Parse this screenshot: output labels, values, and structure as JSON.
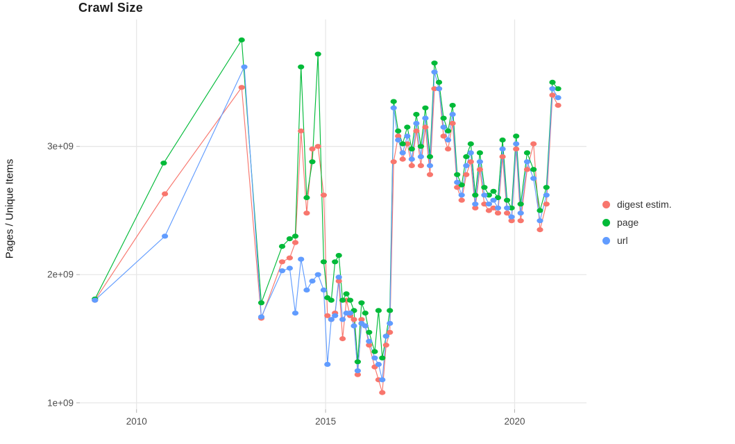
{
  "chart_data": {
    "type": "line",
    "title": "Crawl Size",
    "xlabel": "",
    "ylabel": "Pages / Unique Items",
    "x_unit": "year",
    "y_unit": "value × 1e9 (pages / unique items)",
    "xlim": [
      2008.5,
      2021.9
    ],
    "ylim": [
      0.95,
      3.99
    ],
    "grid": true,
    "grid_color": "#e7e7e7",
    "tick_color": "#4d4d4d",
    "legend_position": "right",
    "x_ticks": [
      {
        "value": 2010,
        "label": "2010"
      },
      {
        "value": 2015,
        "label": "2015"
      },
      {
        "value": 2020,
        "label": "2020"
      }
    ],
    "y_ticks": [
      {
        "value": 1,
        "label": "1e+09"
      },
      {
        "value": 2,
        "label": "2e+09"
      },
      {
        "value": 3,
        "label": "3e+09"
      }
    ],
    "series": [
      {
        "name": "digest estim.",
        "key": "digest-estim",
        "color": "#F8766D",
        "points": [
          [
            2008.9,
            1.8
          ],
          [
            2010.75,
            2.63
          ],
          [
            2012.78,
            3.46
          ],
          [
            2013.3,
            1.66
          ],
          [
            2013.85,
            2.1
          ],
          [
            2014.05,
            2.13
          ],
          [
            2014.2,
            2.25
          ],
          [
            2014.35,
            3.12
          ],
          [
            2014.5,
            2.48
          ],
          [
            2014.65,
            2.98
          ],
          [
            2014.8,
            3.0
          ],
          [
            2014.95,
            2.62
          ],
          [
            2015.05,
            1.68
          ],
          [
            2015.15,
            1.65
          ],
          [
            2015.25,
            1.7
          ],
          [
            2015.35,
            1.95
          ],
          [
            2015.45,
            1.5
          ],
          [
            2015.55,
            1.8
          ],
          [
            2015.65,
            1.68
          ],
          [
            2015.75,
            1.65
          ],
          [
            2015.85,
            1.22
          ],
          [
            2015.95,
            1.65
          ],
          [
            2016.05,
            1.6
          ],
          [
            2016.15,
            1.45
          ],
          [
            2016.3,
            1.28
          ],
          [
            2016.4,
            1.18
          ],
          [
            2016.5,
            1.08
          ],
          [
            2016.6,
            1.45
          ],
          [
            2016.7,
            1.55
          ],
          [
            2016.8,
            2.88
          ],
          [
            2016.92,
            3.08
          ],
          [
            2017.04,
            2.9
          ],
          [
            2017.16,
            3.02
          ],
          [
            2017.28,
            2.85
          ],
          [
            2017.4,
            3.12
          ],
          [
            2017.52,
            2.85
          ],
          [
            2017.64,
            3.15
          ],
          [
            2017.76,
            2.78
          ],
          [
            2017.88,
            3.45
          ],
          [
            2018.0,
            3.45
          ],
          [
            2018.12,
            3.08
          ],
          [
            2018.24,
            2.98
          ],
          [
            2018.36,
            3.18
          ],
          [
            2018.48,
            2.68
          ],
          [
            2018.6,
            2.58
          ],
          [
            2018.72,
            2.78
          ],
          [
            2018.84,
            2.88
          ],
          [
            2018.96,
            2.52
          ],
          [
            2019.08,
            2.82
          ],
          [
            2019.2,
            2.55
          ],
          [
            2019.32,
            2.5
          ],
          [
            2019.44,
            2.52
          ],
          [
            2019.56,
            2.48
          ],
          [
            2019.68,
            2.92
          ],
          [
            2019.8,
            2.48
          ],
          [
            2019.92,
            2.42
          ],
          [
            2020.04,
            2.98
          ],
          [
            2020.16,
            2.42
          ],
          [
            2020.33,
            2.82
          ],
          [
            2020.5,
            3.02
          ],
          [
            2020.67,
            2.35
          ],
          [
            2020.84,
            2.55
          ],
          [
            2021.0,
            3.4
          ],
          [
            2021.15,
            3.32
          ]
        ]
      },
      {
        "name": "page",
        "key": "page",
        "color": "#00BA38",
        "points": [
          [
            2008.9,
            1.81
          ],
          [
            2010.72,
            2.87
          ],
          [
            2012.78,
            3.83
          ],
          [
            2013.3,
            1.78
          ],
          [
            2013.85,
            2.22
          ],
          [
            2014.05,
            2.28
          ],
          [
            2014.2,
            2.3
          ],
          [
            2014.35,
            3.62
          ],
          [
            2014.5,
            2.6
          ],
          [
            2014.65,
            2.88
          ],
          [
            2014.8,
            3.72
          ],
          [
            2014.95,
            2.1
          ],
          [
            2015.05,
            1.82
          ],
          [
            2015.15,
            1.8
          ],
          [
            2015.25,
            2.1
          ],
          [
            2015.35,
            2.15
          ],
          [
            2015.45,
            1.8
          ],
          [
            2015.55,
            1.85
          ],
          [
            2015.65,
            1.8
          ],
          [
            2015.75,
            1.72
          ],
          [
            2015.85,
            1.32
          ],
          [
            2015.95,
            1.78
          ],
          [
            2016.05,
            1.7
          ],
          [
            2016.15,
            1.55
          ],
          [
            2016.3,
            1.4
          ],
          [
            2016.4,
            1.72
          ],
          [
            2016.5,
            1.35
          ],
          [
            2016.6,
            1.52
          ],
          [
            2016.7,
            1.72
          ],
          [
            2016.8,
            3.35
          ],
          [
            2016.92,
            3.12
          ],
          [
            2017.04,
            3.02
          ],
          [
            2017.16,
            3.15
          ],
          [
            2017.28,
            2.98
          ],
          [
            2017.4,
            3.25
          ],
          [
            2017.52,
            3.0
          ],
          [
            2017.64,
            3.3
          ],
          [
            2017.76,
            2.92
          ],
          [
            2017.88,
            3.65
          ],
          [
            2018.0,
            3.5
          ],
          [
            2018.12,
            3.22
          ],
          [
            2018.24,
            3.12
          ],
          [
            2018.36,
            3.32
          ],
          [
            2018.48,
            2.78
          ],
          [
            2018.6,
            2.7
          ],
          [
            2018.72,
            2.92
          ],
          [
            2018.84,
            3.02
          ],
          [
            2018.96,
            2.62
          ],
          [
            2019.08,
            2.95
          ],
          [
            2019.2,
            2.68
          ],
          [
            2019.32,
            2.62
          ],
          [
            2019.44,
            2.65
          ],
          [
            2019.56,
            2.6
          ],
          [
            2019.68,
            3.05
          ],
          [
            2019.8,
            2.58
          ],
          [
            2019.92,
            2.52
          ],
          [
            2020.04,
            3.08
          ],
          [
            2020.16,
            2.55
          ],
          [
            2020.33,
            2.95
          ],
          [
            2020.5,
            2.82
          ],
          [
            2020.67,
            2.5
          ],
          [
            2020.84,
            2.68
          ],
          [
            2021.0,
            3.5
          ],
          [
            2021.15,
            3.45
          ]
        ]
      },
      {
        "name": "url",
        "key": "url",
        "color": "#619CFF",
        "points": [
          [
            2008.9,
            1.8
          ],
          [
            2010.75,
            2.3
          ],
          [
            2012.85,
            3.62
          ],
          [
            2013.3,
            1.67
          ],
          [
            2013.85,
            2.03
          ],
          [
            2014.05,
            2.05
          ],
          [
            2014.2,
            1.7
          ],
          [
            2014.35,
            2.12
          ],
          [
            2014.5,
            1.88
          ],
          [
            2014.65,
            1.95
          ],
          [
            2014.8,
            2.0
          ],
          [
            2014.95,
            1.88
          ],
          [
            2015.05,
            1.3
          ],
          [
            2015.15,
            1.65
          ],
          [
            2015.25,
            1.68
          ],
          [
            2015.35,
            1.98
          ],
          [
            2015.45,
            1.65
          ],
          [
            2015.55,
            1.7
          ],
          [
            2015.65,
            1.7
          ],
          [
            2015.75,
            1.6
          ],
          [
            2015.85,
            1.25
          ],
          [
            2015.95,
            1.62
          ],
          [
            2016.05,
            1.6
          ],
          [
            2016.15,
            1.48
          ],
          [
            2016.3,
            1.35
          ],
          [
            2016.4,
            1.3
          ],
          [
            2016.5,
            1.18
          ],
          [
            2016.6,
            1.52
          ],
          [
            2016.7,
            1.62
          ],
          [
            2016.8,
            3.3
          ],
          [
            2016.92,
            3.05
          ],
          [
            2017.04,
            2.95
          ],
          [
            2017.16,
            3.08
          ],
          [
            2017.28,
            2.9
          ],
          [
            2017.4,
            3.18
          ],
          [
            2017.52,
            2.92
          ],
          [
            2017.64,
            3.22
          ],
          [
            2017.76,
            2.85
          ],
          [
            2017.88,
            3.58
          ],
          [
            2018.0,
            3.45
          ],
          [
            2018.12,
            3.15
          ],
          [
            2018.24,
            3.05
          ],
          [
            2018.36,
            3.25
          ],
          [
            2018.48,
            2.72
          ],
          [
            2018.6,
            2.62
          ],
          [
            2018.72,
            2.85
          ],
          [
            2018.84,
            2.95
          ],
          [
            2018.96,
            2.55
          ],
          [
            2019.08,
            2.88
          ],
          [
            2019.2,
            2.62
          ],
          [
            2019.32,
            2.55
          ],
          [
            2019.44,
            2.58
          ],
          [
            2019.56,
            2.52
          ],
          [
            2019.68,
            2.98
          ],
          [
            2019.8,
            2.52
          ],
          [
            2019.92,
            2.45
          ],
          [
            2020.04,
            3.02
          ],
          [
            2020.16,
            2.48
          ],
          [
            2020.33,
            2.88
          ],
          [
            2020.5,
            2.75
          ],
          [
            2020.67,
            2.42
          ],
          [
            2020.84,
            2.62
          ],
          [
            2021.0,
            3.45
          ],
          [
            2021.15,
            3.38
          ]
        ]
      }
    ]
  }
}
